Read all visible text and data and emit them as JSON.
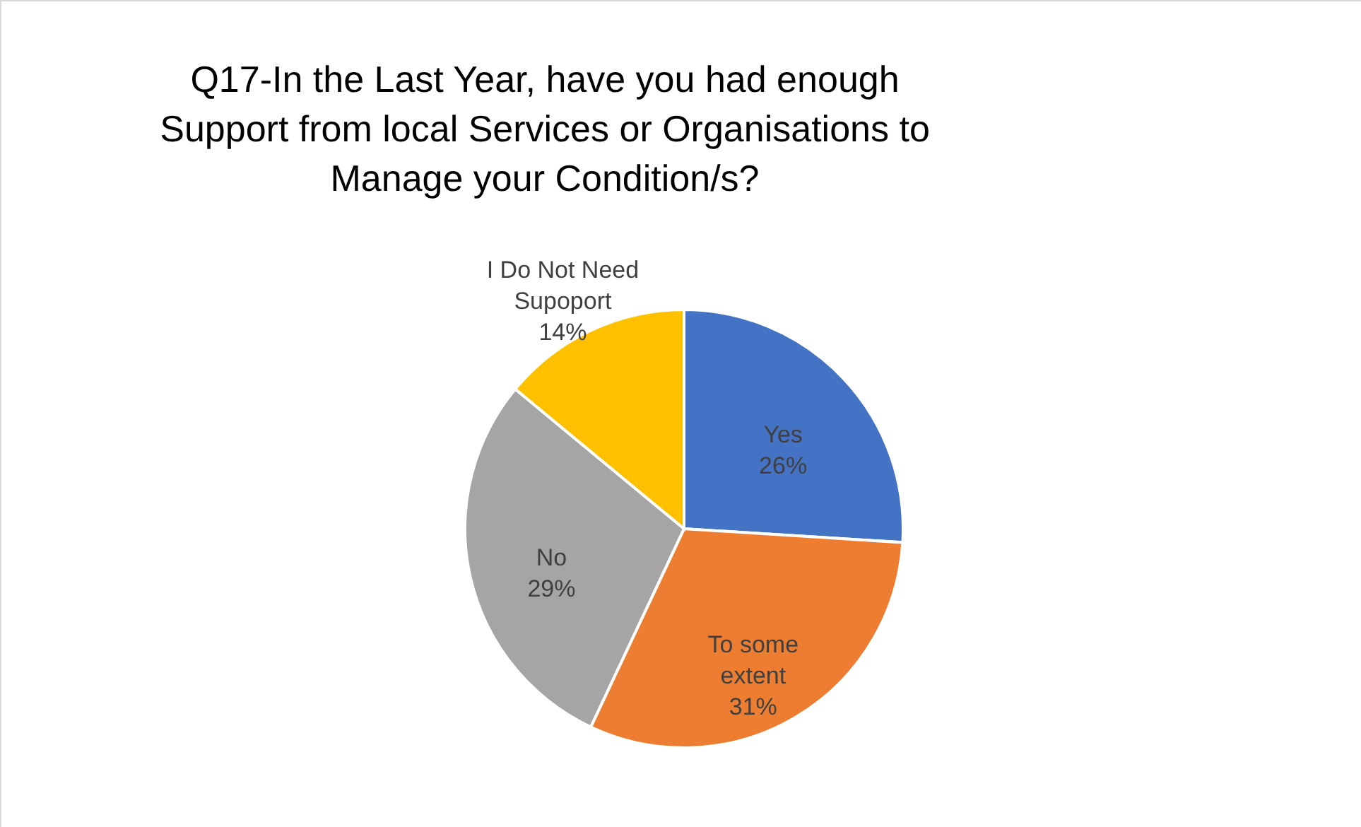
{
  "chart_data": {
    "type": "pie",
    "title": "Q17-In the Last Year, have you had enough Support from local Services or Organisations to Manage your Condition/s?",
    "categories": [
      "Yes",
      "To some extent",
      "No",
      "I Do Not Need Supoport"
    ],
    "values": [
      26,
      31,
      29,
      14
    ],
    "value_labels": [
      "26%",
      "31%",
      "29%",
      "14%"
    ],
    "colors": [
      "#4472c4",
      "#ed7d31",
      "#a5a5a5",
      "#ffc000"
    ],
    "legend": false
  }
}
